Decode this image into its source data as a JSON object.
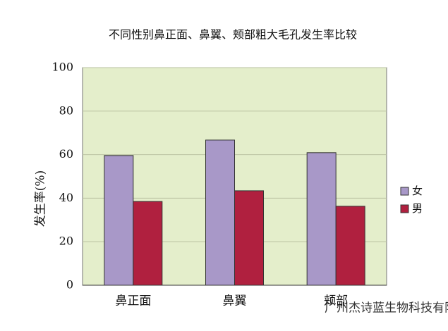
{
  "chart_data": {
    "type": "bar",
    "title": "不同性别鼻正面、鼻翼、颊部粗大毛孔发生率比较",
    "y_label": "发生率(%)",
    "categories": [
      "鼻正面",
      "鼻翼",
      "颊部"
    ],
    "series": [
      {
        "name": "女",
        "color": "#a898c8",
        "values": [
          59.6,
          66.7,
          60.9
        ]
      },
      {
        "name": "男",
        "color": "#b0203f",
        "values": [
          38.5,
          43.4,
          36.3
        ]
      }
    ],
    "ylim": [
      0,
      100
    ],
    "yticks": [
      0,
      20,
      40,
      60,
      80,
      100
    ],
    "grid": true,
    "legend": "right",
    "annotation": "广州杰诗蓝生物科技有限公司"
  }
}
